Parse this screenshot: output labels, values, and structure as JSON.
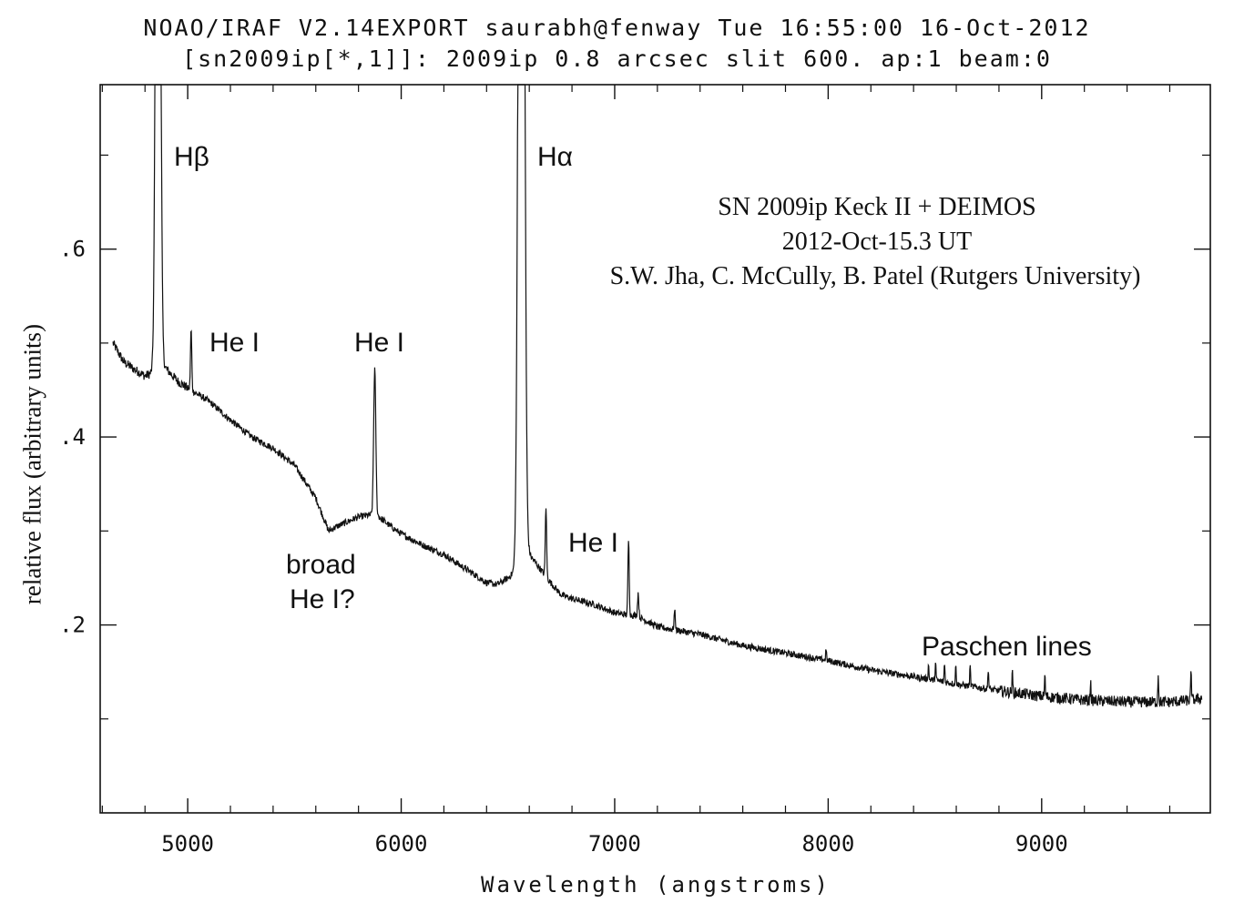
{
  "header": {
    "line1": "NOAO/IRAF V2.14EXPORT saurabh@fenway Tue 16:55:00 16-Oct-2012",
    "line2": "[sn2009ip[*,1]]: 2009ip 0.8 arcsec slit 600. ap:1 beam:0"
  },
  "info": {
    "line1": "SN 2009ip  Keck II + DEIMOS",
    "line2": "2012-Oct-15.3 UT",
    "line3": "S.W. Jha, C. McCully, B. Patel (Rutgers University)"
  },
  "labels": {
    "hbeta": "Hβ",
    "halpha": "Hα",
    "hei_1": "He I",
    "hei_2": "He I",
    "hei_3": "He I",
    "broad_1": "broad",
    "broad_2": "He I?",
    "paschen": "Paschen lines"
  },
  "chart_data": {
    "type": "line",
    "xlabel": "Wavelength (angstroms)",
    "ylabel": "relative flux (arbitrary units)",
    "xlim": [
      4590,
      9790
    ],
    "ylim": [
      0.0,
      0.775
    ],
    "x_ticks": [
      5000,
      6000,
      7000,
      8000,
      9000
    ],
    "x_tick_labels": [
      "5000",
      "6000",
      "7000",
      "8000",
      "9000"
    ],
    "y_ticks": [
      0.2,
      0.4,
      0.6
    ],
    "y_tick_labels": [
      ".2",
      ".4",
      ".6"
    ],
    "grid": false,
    "continuum": {
      "x": [
        4650,
        4700,
        4750,
        4800,
        4850,
        4870,
        4950,
        5000,
        5100,
        5200,
        5300,
        5400,
        5500,
        5600,
        5660,
        5700,
        5800,
        5880,
        5950,
        6000,
        6100,
        6200,
        6300,
        6400,
        6450,
        6500,
        6550,
        6600,
        6650,
        6700,
        6750,
        6800,
        6900,
        7000,
        7050,
        7100,
        7200,
        7400,
        7600,
        7800,
        8000,
        8200,
        8400,
        8600,
        8800,
        9000,
        9200,
        9400,
        9600,
        9700,
        9750
      ],
      "y": [
        0.5,
        0.48,
        0.472,
        0.465,
        0.47,
        0.48,
        0.46,
        0.452,
        0.438,
        0.418,
        0.4,
        0.388,
        0.37,
        0.335,
        0.3,
        0.305,
        0.315,
        0.318,
        0.305,
        0.297,
        0.285,
        0.275,
        0.26,
        0.245,
        0.243,
        0.25,
        0.26,
        0.275,
        0.26,
        0.245,
        0.232,
        0.228,
        0.222,
        0.213,
        0.211,
        0.21,
        0.198,
        0.19,
        0.178,
        0.17,
        0.162,
        0.152,
        0.145,
        0.137,
        0.13,
        0.124,
        0.12,
        0.118,
        0.118,
        0.12,
        0.122
      ]
    },
    "emission_lines": [
      {
        "x": 4861,
        "peak": 1.2,
        "sigma": 9
      },
      {
        "x": 5016,
        "peak": 0.065,
        "sigma": 3
      },
      {
        "x": 5876,
        "peak": 0.155,
        "sigma": 5
      },
      {
        "x": 6563,
        "peak": 1.8,
        "sigma": 11
      },
      {
        "x": 6678,
        "peak": 0.075,
        "sigma": 3
      },
      {
        "x": 7065,
        "peak": 0.08,
        "sigma": 3
      },
      {
        "x": 7110,
        "peak": 0.025,
        "sigma": 3
      },
      {
        "x": 7281,
        "peak": 0.02,
        "sigma": 3
      },
      {
        "x": 7990,
        "peak": 0.012,
        "sigma": 2
      },
      {
        "x": 8470,
        "peak": 0.015,
        "sigma": 2
      },
      {
        "x": 8503,
        "peak": 0.02,
        "sigma": 2
      },
      {
        "x": 8545,
        "peak": 0.02,
        "sigma": 2
      },
      {
        "x": 8598,
        "peak": 0.02,
        "sigma": 2
      },
      {
        "x": 8665,
        "peak": 0.022,
        "sigma": 2
      },
      {
        "x": 8750,
        "peak": 0.022,
        "sigma": 2
      },
      {
        "x": 8863,
        "peak": 0.02,
        "sigma": 2
      },
      {
        "x": 9015,
        "peak": 0.022,
        "sigma": 2
      },
      {
        "x": 9229,
        "peak": 0.02,
        "sigma": 2
      },
      {
        "x": 9546,
        "peak": 0.03,
        "sigma": 2
      },
      {
        "x": 9700,
        "peak": 0.03,
        "sigma": 2
      }
    ]
  }
}
